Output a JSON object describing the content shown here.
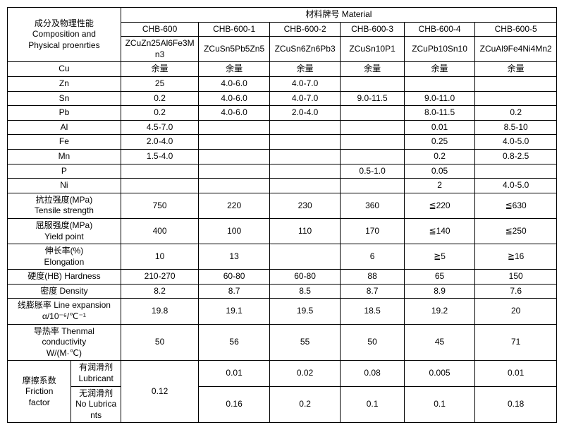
{
  "header": {
    "cn": "成分及物理性能",
    "en1": "Composition and",
    "en2": "Physical proenrties",
    "material_cn": "材料牌号 Material"
  },
  "materials": [
    {
      "code": "CHB-600",
      "alloy": "ZCuZn25Al6Fe3Mn3"
    },
    {
      "code": "CHB-600-1",
      "alloy": "ZCuSn5Pb5Zn5"
    },
    {
      "code": "CHB-600-2",
      "alloy": "ZCuSn6Zn6Pb3"
    },
    {
      "code": "CHB-600-3",
      "alloy": "ZCuSn10P1"
    },
    {
      "code": "CHB-600-4",
      "alloy": "ZCuPb10Sn10"
    },
    {
      "code": "CHB-600-5",
      "alloy": "ZCuAl9Fe4Ni4Mn2"
    }
  ],
  "rows": [
    {
      "label": "Cu",
      "v": [
        "余量",
        "余量",
        "余量",
        "余量",
        "余量",
        "余量"
      ]
    },
    {
      "label": "Zn",
      "v": [
        "25",
        "4.0-6.0",
        "4.0-7.0",
        "",
        "",
        ""
      ]
    },
    {
      "label": "Sn",
      "v": [
        "0.2",
        "4.0-6.0",
        "4.0-7.0",
        "9.0-11.5",
        "9.0-11.0",
        ""
      ]
    },
    {
      "label": "Pb",
      "v": [
        "0.2",
        "4.0-6.0",
        "2.0-4.0",
        "",
        "8.0-11.5",
        "0.2"
      ]
    },
    {
      "label": "Al",
      "v": [
        "4.5-7.0",
        "",
        "",
        "",
        "0.01",
        "8.5-10"
      ]
    },
    {
      "label": "Fe",
      "v": [
        "2.0-4.0",
        "",
        "",
        "",
        "0.25",
        "4.0-5.0"
      ]
    },
    {
      "label": "Mn",
      "v": [
        "1.5-4.0",
        "",
        "",
        "",
        "0.2",
        "0.8-2.5"
      ]
    },
    {
      "label": "P",
      "v": [
        "",
        "",
        "",
        "0.5-1.0",
        "0.05",
        ""
      ]
    },
    {
      "label": "Ni",
      "v": [
        "",
        "",
        "",
        "",
        "2",
        "4.0-5.0"
      ]
    },
    {
      "label": "抗拉强度(MPa)\nTensile strength",
      "v": [
        "750",
        "220",
        "230",
        "360",
        "≦220",
        "≦630"
      ]
    },
    {
      "label": "屈服强度(MPa)\nYield point",
      "v": [
        "400",
        "100",
        "110",
        "170",
        "≦140",
        "≦250"
      ]
    },
    {
      "label": "伸长率(%)\nElongation",
      "v": [
        "10",
        "13",
        "",
        "6",
        "≧5",
        "≧16"
      ]
    },
    {
      "label": "硬度(HB) Hardness",
      "v": [
        "210-270",
        "60-80",
        "60-80",
        "88",
        "65",
        "150"
      ]
    },
    {
      "label": "密度 Density",
      "v": [
        "8.2",
        "8.7",
        "8.5",
        "8.7",
        "8.9",
        "7.6"
      ]
    },
    {
      "label": "线膨胀率 Line expansion\nα/10⁻⁶/℃⁻¹",
      "v": [
        "19.8",
        "19.1",
        "19.5",
        "18.5",
        "19.2",
        "20"
      ]
    },
    {
      "label": "导热率 Thenmal\nconductivity\nW/(M·℃)",
      "v": [
        "50",
        "56",
        "55",
        "50",
        "45",
        "71"
      ]
    }
  ],
  "friction": {
    "group_label": "摩擦系数\nFriction\nfactor",
    "lub_label": "有润滑剂\nLubricant",
    "nolub_label": "无润滑剂\nNo Lubricants",
    "lub": [
      "0.12",
      "0.01",
      "0.02",
      "0.08",
      "0.005",
      "0.01"
    ],
    "nolub": [
      "",
      "0.16",
      "0.2",
      "0.1",
      "0.1",
      "0.18"
    ],
    "col0_merged": "0.12"
  }
}
